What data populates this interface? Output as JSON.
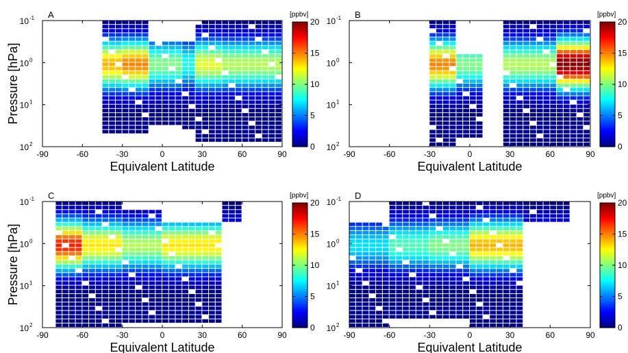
{
  "chart_data": [
    {
      "type": "heatmap",
      "panel_label": "A",
      "xlabel": "Equivalent Latitude",
      "ylabel": "Pressure [hPa]",
      "xlim": [
        -90,
        90
      ],
      "x_ticks": [
        "-90",
        "-60",
        "-30",
        "0",
        "30",
        "60",
        "90"
      ],
      "ylim": [
        100,
        0.1
      ],
      "y_scale": "log",
      "y_ticks": [
        {
          "base": "10",
          "exp": "-1"
        },
        {
          "base": "10",
          "exp": "0"
        },
        {
          "base": "10",
          "exp": "1"
        },
        {
          "base": "10",
          "exp": "2"
        }
      ],
      "colorbar": {
        "label": "[ppbv]",
        "min": 0,
        "max": 20,
        "ticks": [
          "0",
          "5",
          "10",
          "15",
          "20"
        ],
        "colormap": "jet"
      },
      "lat_bins": [
        -45,
        90
      ],
      "profiles": [
        {
          "lat": [
            -45,
            -30
          ],
          "p_top": 0.1,
          "p_bottom": 45,
          "vmax": 14
        },
        {
          "lat": [
            -30,
            -10
          ],
          "p_top": 0.1,
          "p_bottom": 50,
          "vmax": 15
        },
        {
          "lat": [
            -10,
            15
          ],
          "p_top": 0.3,
          "p_bottom": 30,
          "vmax": 10
        },
        {
          "lat": [
            15,
            25
          ],
          "p_top": 0.3,
          "p_bottom": 40,
          "vmax": 8
        },
        {
          "lat": [
            25,
            45
          ],
          "p_top": 0.1,
          "p_bottom": 80,
          "vmax": 12
        },
        {
          "lat": [
            45,
            90
          ],
          "p_top": 0.1,
          "p_bottom": 80,
          "vmax": 11
        }
      ]
    },
    {
      "type": "heatmap",
      "panel_label": "B",
      "xlabel": "Equivalent Latitude",
      "ylabel": "",
      "xlim": [
        -90,
        90
      ],
      "x_ticks": [
        "-90",
        "-60",
        "-30",
        "0",
        "30",
        "60",
        "90"
      ],
      "ylim": [
        100,
        0.1
      ],
      "y_scale": "log",
      "y_ticks": [
        {
          "base": "10",
          "exp": "-1"
        },
        {
          "base": "10",
          "exp": "0"
        },
        {
          "base": "10",
          "exp": "1"
        },
        {
          "base": "10",
          "exp": "2"
        }
      ],
      "colorbar": {
        "label": "[ppbv]",
        "min": 0,
        "max": 20,
        "ticks": [
          "0",
          "5",
          "10",
          "15",
          "20"
        ],
        "colormap": "jet"
      },
      "profiles": [
        {
          "lat": [
            -30,
            -10
          ],
          "p_top": 0.1,
          "p_bottom": 90,
          "vmax": 15
        },
        {
          "lat": [
            -10,
            10
          ],
          "p_top": 0.6,
          "p_bottom": 60,
          "vmax": 10
        },
        {
          "lat": [
            25,
            65
          ],
          "p_top": 0.1,
          "p_bottom": 90,
          "vmax": 11
        },
        {
          "lat": [
            65,
            90
          ],
          "p_top": 0.1,
          "p_bottom": 90,
          "vmax": 20
        }
      ]
    },
    {
      "type": "heatmap",
      "panel_label": "C",
      "xlabel": "Equivalent Latitude",
      "ylabel": "Pressure [hPa]",
      "xlim": [
        -90,
        90
      ],
      "x_ticks": [
        "-90",
        "-60",
        "-30",
        "0",
        "30",
        "60",
        "90"
      ],
      "ylim": [
        100,
        0.1
      ],
      "y_scale": "log",
      "y_ticks": [
        {
          "base": "10",
          "exp": "-1"
        },
        {
          "base": "10",
          "exp": "0"
        },
        {
          "base": "10",
          "exp": "1"
        },
        {
          "base": "10",
          "exp": "2"
        }
      ],
      "colorbar": {
        "label": "[ppbv]",
        "min": 0,
        "max": 20,
        "ticks": [
          "0",
          "5",
          "10",
          "15",
          "20"
        ],
        "colormap": "jet"
      },
      "profiles": [
        {
          "lat": [
            -80,
            -60
          ],
          "p_top": 0.1,
          "p_bottom": 90,
          "vmax": 17
        },
        {
          "lat": [
            -60,
            -30
          ],
          "p_top": 0.1,
          "p_bottom": 90,
          "vmax": 13
        },
        {
          "lat": [
            -30,
            0
          ],
          "p_top": 0.15,
          "p_bottom": 80,
          "vmax": 11
        },
        {
          "lat": [
            0,
            45
          ],
          "p_top": 0.3,
          "p_bottom": 80,
          "vmax": 13
        },
        {
          "lat": [
            45,
            62
          ],
          "p_top": 0.1,
          "p_bottom": 0.3,
          "vmax": 6
        }
      ]
    },
    {
      "type": "heatmap",
      "panel_label": "D",
      "xlabel": "Equivalent Latitude",
      "ylabel": "",
      "xlim": [
        -90,
        90
      ],
      "x_ticks": [
        "-90",
        "-60",
        "-30",
        "0",
        "30",
        "60",
        "90"
      ],
      "ylim": [
        100,
        0.1
      ],
      "y_scale": "log",
      "y_ticks": [
        {
          "base": "10",
          "exp": "-1"
        },
        {
          "base": "10",
          "exp": "0"
        },
        {
          "base": "10",
          "exp": "1"
        },
        {
          "base": "10",
          "exp": "2"
        }
      ],
      "colorbar": {
        "label": "[ppbv]",
        "min": 0,
        "max": 20,
        "ticks": [
          "0",
          "5",
          "10",
          "15",
          "20"
        ],
        "colormap": "jet"
      },
      "profiles": [
        {
          "lat": [
            -90,
            -60
          ],
          "p_top": 0.3,
          "p_bottom": 90,
          "vmax": 7
        },
        {
          "lat": [
            -60,
            -30
          ],
          "p_top": 0.1,
          "p_bottom": 60,
          "vmax": 9
        },
        {
          "lat": [
            -30,
            0
          ],
          "p_top": 0.1,
          "p_bottom": 60,
          "vmax": 10
        },
        {
          "lat": [
            0,
            40
          ],
          "p_top": 0.1,
          "p_bottom": 90,
          "vmax": 14
        },
        {
          "lat": [
            40,
            75
          ],
          "p_top": 0.1,
          "p_bottom": 0.3,
          "vmax": 6
        }
      ]
    }
  ]
}
